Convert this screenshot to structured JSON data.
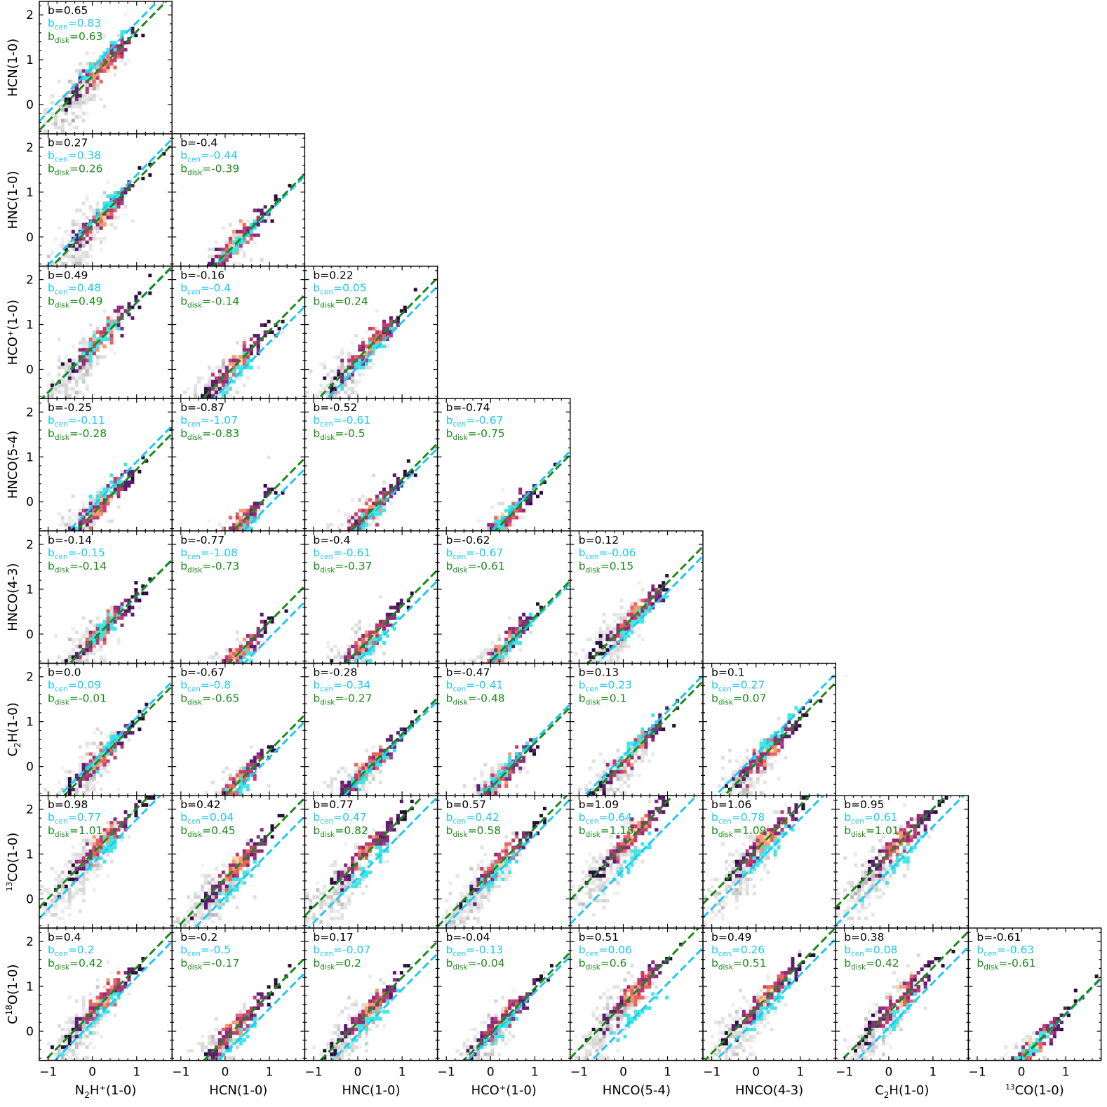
{
  "chart_data": {
    "type": "scatter",
    "title": "",
    "layout": "lower-triangular corner plot, 8 rows x 8 columns",
    "x_tick_labels": [
      "−1",
      "0",
      "1"
    ],
    "y_tick_labels": [
      "0",
      "1",
      "2"
    ],
    "xlim": [
      -1.2,
      1.8
    ],
    "ylim": [
      -0.65,
      2.3
    ],
    "x_ticks": [
      -1,
      0,
      1
    ],
    "y_ticks": [
      0,
      1,
      2
    ],
    "column_labels": [
      {
        "main": "N",
        "sub": "2",
        "rest": "H⁺(1-0)"
      },
      {
        "main": "HCN(1-0)"
      },
      {
        "main": "HNC(1-0)"
      },
      {
        "main": "HCO⁺(1-0)"
      },
      {
        "main": "HNCO(5-4)"
      },
      {
        "main": "HNCO(4-3)"
      },
      {
        "main": "C",
        "sub": "2",
        "rest": "H(1-0)"
      },
      {
        "sup": "13",
        "main": "CO(1-0)"
      }
    ],
    "row_labels": [
      {
        "main": "HCN(1-0)"
      },
      {
        "main": "HNC(1-0)"
      },
      {
        "main": "HCO⁺(1-0)"
      },
      {
        "main": "HNCO(5-4)"
      },
      {
        "main": "HNCO(4-3)"
      },
      {
        "main": "C",
        "sub": "2",
        "rest": "H(1-0)"
      },
      {
        "sup": "13",
        "main": "CO(1-0)"
      },
      {
        "main": "C",
        "sup": "18",
        "rest": "O(1-0)"
      }
    ],
    "annotation_labels": {
      "b": "b",
      "b_cen": "cen",
      "b_disk": "disk"
    },
    "series": [
      {
        "name": "b",
        "color": "#000000"
      },
      {
        "name": "b_cen",
        "color": "#1ec8f0"
      },
      {
        "name": "b_disk",
        "color": "#1a8a1a"
      }
    ],
    "panels": [
      {
        "row": 0,
        "col": 0,
        "b": "0.65",
        "b_cen": "0.83",
        "b_disk": "0.63"
      },
      {
        "row": 1,
        "col": 0,
        "b": "0.27",
        "b_cen": "0.38",
        "b_disk": "0.26"
      },
      {
        "row": 1,
        "col": 1,
        "b": "-0.4",
        "b_cen": "-0.44",
        "b_disk": "-0.39"
      },
      {
        "row": 2,
        "col": 0,
        "b": "0.49",
        "b_cen": "0.48",
        "b_disk": "0.49"
      },
      {
        "row": 2,
        "col": 1,
        "b": "-0.16",
        "b_cen": "-0.4",
        "b_disk": "-0.14"
      },
      {
        "row": 2,
        "col": 2,
        "b": "0.22",
        "b_cen": "0.05",
        "b_disk": "0.24"
      },
      {
        "row": 3,
        "col": 0,
        "b": "-0.25",
        "b_cen": "-0.11",
        "b_disk": "-0.28"
      },
      {
        "row": 3,
        "col": 1,
        "b": "-0.87",
        "b_cen": "-1.07",
        "b_disk": "-0.83"
      },
      {
        "row": 3,
        "col": 2,
        "b": "-0.52",
        "b_cen": "-0.61",
        "b_disk": "-0.5"
      },
      {
        "row": 3,
        "col": 3,
        "b": "-0.74",
        "b_cen": "-0.67",
        "b_disk": "-0.75"
      },
      {
        "row": 4,
        "col": 0,
        "b": "-0.14",
        "b_cen": "-0.15",
        "b_disk": "-0.14"
      },
      {
        "row": 4,
        "col": 1,
        "b": "-0.77",
        "b_cen": "-1.08",
        "b_disk": "-0.73"
      },
      {
        "row": 4,
        "col": 2,
        "b": "-0.4",
        "b_cen": "-0.61",
        "b_disk": "-0.37"
      },
      {
        "row": 4,
        "col": 3,
        "b": "-0.62",
        "b_cen": "-0.67",
        "b_disk": "-0.61"
      },
      {
        "row": 4,
        "col": 4,
        "b": "0.12",
        "b_cen": "-0.06",
        "b_disk": "0.15"
      },
      {
        "row": 5,
        "col": 0,
        "b": "0.0",
        "b_cen": "0.09",
        "b_disk": "-0.01"
      },
      {
        "row": 5,
        "col": 1,
        "b": "-0.67",
        "b_cen": "-0.8",
        "b_disk": "-0.65"
      },
      {
        "row": 5,
        "col": 2,
        "b": "-0.28",
        "b_cen": "-0.34",
        "b_disk": "-0.27"
      },
      {
        "row": 5,
        "col": 3,
        "b": "-0.47",
        "b_cen": "-0.41",
        "b_disk": "-0.48"
      },
      {
        "row": 5,
        "col": 4,
        "b": "0.13",
        "b_cen": "0.23",
        "b_disk": "0.1"
      },
      {
        "row": 5,
        "col": 5,
        "b": "0.1",
        "b_cen": "0.27",
        "b_disk": "0.07"
      },
      {
        "row": 6,
        "col": 0,
        "b": "0.98",
        "b_cen": "0.77",
        "b_disk": "1.01"
      },
      {
        "row": 6,
        "col": 1,
        "b": "0.42",
        "b_cen": "0.04",
        "b_disk": "0.45"
      },
      {
        "row": 6,
        "col": 2,
        "b": "0.77",
        "b_cen": "0.47",
        "b_disk": "0.82"
      },
      {
        "row": 6,
        "col": 3,
        "b": "0.57",
        "b_cen": "0.42",
        "b_disk": "0.58"
      },
      {
        "row": 6,
        "col": 4,
        "b": "1.09",
        "b_cen": "0.64",
        "b_disk": "1.18"
      },
      {
        "row": 6,
        "col": 5,
        "b": "1.06",
        "b_cen": "0.78",
        "b_disk": "1.09"
      },
      {
        "row": 6,
        "col": 6,
        "b": "0.95",
        "b_cen": "0.61",
        "b_disk": "1.01"
      },
      {
        "row": 7,
        "col": 0,
        "b": "0.4",
        "b_cen": "0.2",
        "b_disk": "0.42"
      },
      {
        "row": 7,
        "col": 1,
        "b": "-0.2",
        "b_cen": "-0.5",
        "b_disk": "-0.17"
      },
      {
        "row": 7,
        "col": 2,
        "b": "0.17",
        "b_cen": "-0.07",
        "b_disk": "0.2"
      },
      {
        "row": 7,
        "col": 3,
        "b": "-0.04",
        "b_cen": "-0.13",
        "b_disk": "-0.04"
      },
      {
        "row": 7,
        "col": 4,
        "b": "0.51",
        "b_cen": "0.06",
        "b_disk": "0.6"
      },
      {
        "row": 7,
        "col": 5,
        "b": "0.49",
        "b_cen": "0.26",
        "b_disk": "0.51"
      },
      {
        "row": 7,
        "col": 6,
        "b": "0.38",
        "b_cen": "0.08",
        "b_disk": "0.42"
      },
      {
        "row": 7,
        "col": 7,
        "b": "-0.61",
        "b_cen": "-0.63",
        "b_disk": "-0.61"
      }
    ],
    "grid": false,
    "legend": "none"
  }
}
